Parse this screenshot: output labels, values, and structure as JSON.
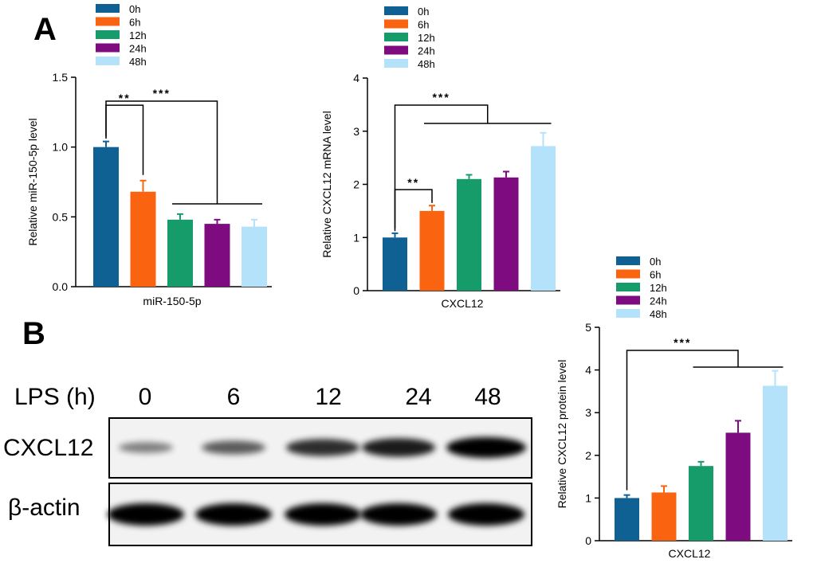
{
  "colors": {
    "0h": "#0f6193",
    "6h": "#fa6411",
    "12h": "#169c6b",
    "24h": "#7e0b7f",
    "48h": "#b4e2fa"
  },
  "panels": {
    "A": "A",
    "B": "B"
  },
  "chart_data": [
    {
      "type": "bar",
      "categories": [
        "0h",
        "6h",
        "12h",
        "24h",
        "48h"
      ],
      "values": [
        1.0,
        0.68,
        0.48,
        0.45,
        0.43
      ],
      "errors": [
        0.04,
        0.08,
        0.04,
        0.03,
        0.05
      ],
      "legend": [
        "0h",
        "6h",
        "12h",
        "24h",
        "48h"
      ],
      "legend_position": "top",
      "xlabel": "miR-150-5p",
      "ylabel": "Relative miR-150-5p level",
      "ylim": [
        0,
        1.5
      ],
      "yticks": [
        "0.0",
        "0.5",
        "1.0",
        "1.5"
      ],
      "annotations": [
        "**",
        "***"
      ]
    },
    {
      "type": "bar",
      "categories": [
        "0h",
        "6h",
        "12h",
        "24h",
        "48h"
      ],
      "values": [
        1.0,
        1.5,
        2.1,
        2.13,
        2.72
      ],
      "errors": [
        0.08,
        0.1,
        0.08,
        0.11,
        0.25
      ],
      "legend": [
        "0h",
        "6h",
        "12h",
        "24h",
        "48h"
      ],
      "legend_position": "top",
      "xlabel": "CXCL12",
      "ylabel": "Relative CXCL12 mRNA level",
      "ylim": [
        0,
        4
      ],
      "yticks": [
        "0",
        "1",
        "2",
        "3",
        "4"
      ],
      "annotations": [
        "**",
        "***"
      ]
    },
    {
      "type": "bar",
      "categories": [
        "0h",
        "6h",
        "12h",
        "24h",
        "48h"
      ],
      "values": [
        1.0,
        1.13,
        1.75,
        2.53,
        3.63
      ],
      "errors": [
        0.07,
        0.15,
        0.1,
        0.28,
        0.35
      ],
      "legend": [
        "0h",
        "6h",
        "12h",
        "24h",
        "48h"
      ],
      "legend_position": "top",
      "xlabel": "CXCL12",
      "ylabel": "Relative CXCL12 protein level",
      "ylim": [
        0,
        5
      ],
      "yticks": [
        "0",
        "1",
        "2",
        "3",
        "4",
        "5"
      ],
      "annotations": [
        "***"
      ]
    }
  ],
  "blot": {
    "header_label": "LPS (h)",
    "timepoints": [
      "0",
      "6",
      "12",
      "24",
      "48"
    ],
    "rows": [
      {
        "label": "CXCL12",
        "intensity": [
          0.3,
          0.5,
          0.75,
          0.85,
          1.0
        ]
      },
      {
        "label": "β-actin",
        "intensity": [
          1.0,
          1.0,
          1.0,
          1.0,
          1.0
        ]
      }
    ]
  }
}
